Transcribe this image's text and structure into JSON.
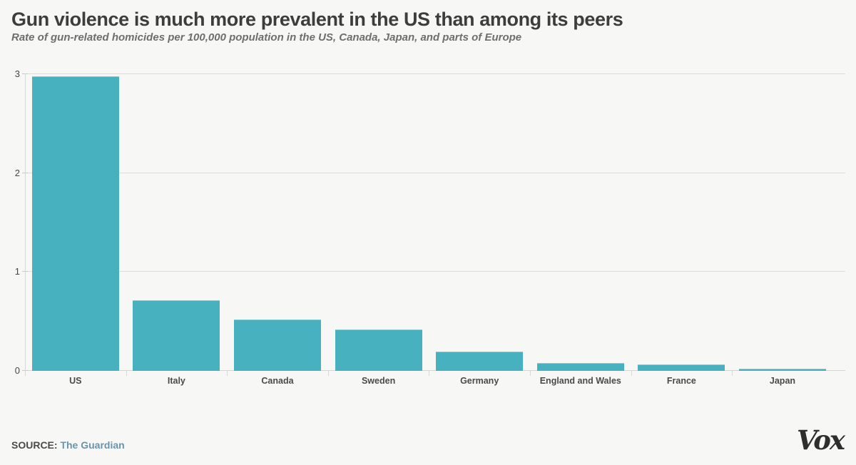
{
  "header": {
    "title": "Gun violence is much more prevalent in the US than among its peers",
    "subtitle": "Rate of gun-related homicides per 100,000 population in the US, Canada, Japan, and parts of Europe"
  },
  "chart_data": {
    "type": "bar",
    "categories": [
      "US",
      "Italy",
      "Canada",
      "Sweden",
      "Germany",
      "England and Wales",
      "France",
      "Japan"
    ],
    "values": [
      2.97,
      0.71,
      0.51,
      0.41,
      0.19,
      0.07,
      0.06,
      0.01
    ],
    "title": "Gun violence is much more prevalent in the US than among its peers",
    "subtitle": "Rate of gun-related homicides per 100,000 population in the US, Canada, Japan, and parts of Europe",
    "xlabel": "",
    "ylabel": "",
    "ylim": [
      0,
      3
    ],
    "yticks": [
      0,
      1,
      2,
      3
    ],
    "grid": true,
    "legend": false,
    "bar_color": "#48b1bf"
  },
  "footer": {
    "source_label": "SOURCE:",
    "source_link_text": "The Guardian",
    "brand": "Vox"
  },
  "colors": {
    "background": "#f7f7f5",
    "title": "#3d3d3d",
    "subtitle": "#6e6e6e",
    "bar": "#48b1bf",
    "axis_text": "#4a4a4a",
    "gridline": "#dcdcdc",
    "source_link": "#6b93a9",
    "brand": "#2e2e2e"
  }
}
